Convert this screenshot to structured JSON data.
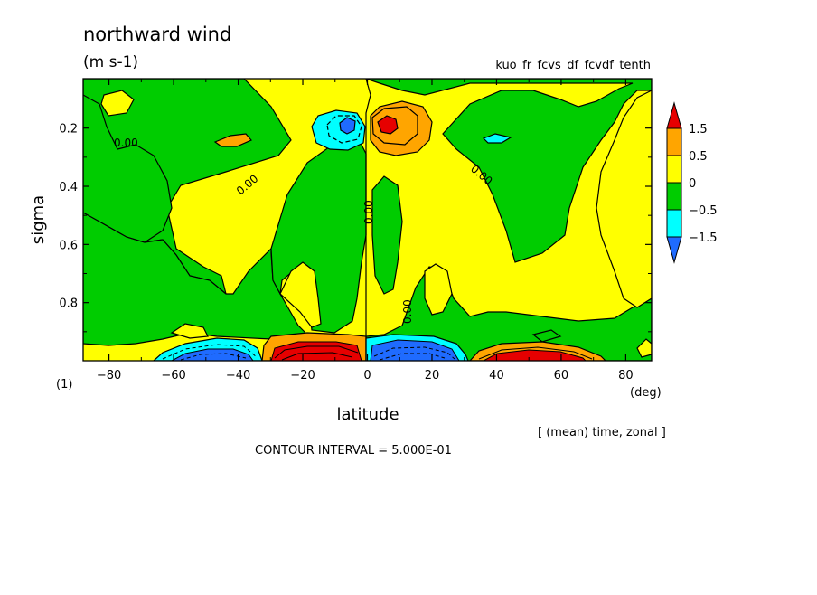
{
  "header": {
    "title": "northward wind",
    "units": "(m s-1)",
    "experiment": "kuo_fr_fcvs_df_fcvdf_tenth"
  },
  "footer": {
    "page_index": "(1)",
    "lon_unit": "(deg)",
    "averaging_note": "[ (mean) time, zonal ]",
    "contour_interval": "CONTOUR INTERVAL = 5.000E-01"
  },
  "colors": {
    "lt_neg_1_5": "#1f6bff",
    "neg_1_5_to_neg_0_5": "#00ffff",
    "neg_0_5_to_0": "#00cc00",
    "zero_to_0_5": "#ffff00",
    "0_5_to_1_5": "#ffa500",
    "gt_1_5": "#e60000"
  },
  "chart_data": {
    "type": "heatmap",
    "plot_kind": "filled contour",
    "title": "northward wind",
    "units": "(m s-1)",
    "xlabel": "latitude",
    "ylabel": "sigma",
    "xlim": [
      -88,
      88
    ],
    "ylim": [
      1.0,
      0.03
    ],
    "y_inverted": true,
    "xticks": [
      -80,
      -60,
      -40,
      -20,
      0,
      20,
      40,
      60,
      80
    ],
    "yticks": [
      0.2,
      0.4,
      0.6,
      0.8
    ],
    "colorbar_levels": [
      -1.5,
      -0.5,
      0,
      0.5,
      1.5
    ],
    "colorbar_labels": [
      "1.5",
      "0.5",
      "0",
      "−0.5",
      "−1.5"
    ],
    "contour_interval": 0.5,
    "contour_labels": [
      "0.00",
      "0.00",
      "0.00",
      "0.00",
      "0.00"
    ],
    "features": [
      {
        "region": "upper tropics south of equator",
        "lat": -7,
        "sigma": 0.2,
        "value_range": "< -1.5"
      },
      {
        "region": "upper tropics north of equator",
        "lat": 7,
        "sigma": 0.19,
        "value_range": "> 1.5"
      },
      {
        "region": "surface layer 5S-30S",
        "lat": -10,
        "sigma": 0.97,
        "value_range": "> 1.5"
      },
      {
        "region": "surface layer 0-25N",
        "lat": 10,
        "sigma": 0.97,
        "value_range": "< -1.5"
      },
      {
        "region": "surface layer 40S-60S",
        "lat": -50,
        "sigma": 0.98,
        "value_range": "-1.5 to -0.5"
      },
      {
        "region": "surface layer 40N-65N",
        "lat": 48,
        "sigma": 0.98,
        "value_range": "0.5 to 1.5"
      }
    ]
  }
}
